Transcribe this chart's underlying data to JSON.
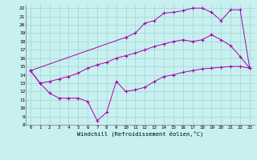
{
  "xlabel": "Windchill (Refroidissement éolien,°C)",
  "bg_color": "#c8f0f0",
  "grid_color": "#a8d8d8",
  "line_color": "#aa00aa",
  "xlim": [
    -0.5,
    23.5
  ],
  "ylim": [
    8,
    22.4
  ],
  "xticks": [
    0,
    1,
    2,
    3,
    4,
    5,
    6,
    7,
    8,
    9,
    10,
    11,
    12,
    13,
    14,
    15,
    16,
    17,
    18,
    19,
    20,
    21,
    22,
    23
  ],
  "yticks": [
    8,
    9,
    10,
    11,
    12,
    13,
    14,
    15,
    16,
    17,
    18,
    19,
    20,
    21,
    22
  ],
  "line1_x": [
    0,
    1,
    2,
    3,
    4,
    5,
    6,
    7,
    8,
    9,
    10,
    11,
    12,
    13,
    14,
    15,
    16,
    17,
    18,
    19,
    20,
    21,
    22,
    23
  ],
  "line1_y": [
    14.5,
    13.0,
    11.8,
    11.2,
    11.2,
    11.2,
    10.8,
    8.5,
    9.5,
    13.2,
    12.0,
    12.2,
    12.5,
    13.2,
    13.8,
    14.0,
    14.3,
    14.5,
    14.7,
    14.8,
    14.9,
    15.0,
    15.0,
    14.8
  ],
  "line2_x": [
    0,
    1,
    2,
    3,
    4,
    5,
    6,
    7,
    8,
    9,
    10,
    11,
    12,
    13,
    14,
    15,
    16,
    17,
    18,
    19,
    20,
    21,
    22,
    23
  ],
  "line2_y": [
    14.5,
    13.0,
    13.2,
    13.5,
    13.8,
    14.2,
    14.8,
    15.2,
    15.5,
    16.0,
    16.3,
    16.6,
    17.0,
    17.4,
    17.7,
    18.0,
    18.2,
    18.0,
    18.2,
    18.8,
    18.2,
    17.5,
    16.2,
    14.8
  ],
  "line3_x": [
    0,
    10,
    11,
    12,
    13,
    14,
    15,
    16,
    17,
    18,
    19,
    20,
    21,
    22,
    23
  ],
  "line3_y": [
    14.5,
    18.5,
    19.0,
    20.2,
    20.5,
    21.4,
    21.5,
    21.7,
    22.0,
    22.0,
    21.5,
    20.5,
    21.8,
    21.8,
    14.8
  ]
}
